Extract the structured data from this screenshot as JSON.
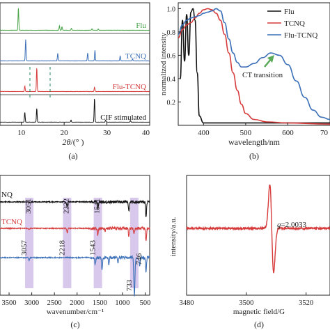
{
  "chart_data": [
    {
      "panel": "(a)",
      "type": "line",
      "xlabel_var": "2θ",
      "xlabel_unit": "/(° )",
      "xlim": [
        5,
        40
      ],
      "xticks": [
        10,
        20,
        30,
        40
      ],
      "series": [
        {
          "name": "Flu",
          "color": "#4aa54a",
          "offset": 3,
          "peaks": [
            [
              9.3,
              0.9
            ],
            [
              18.9,
              0.18
            ],
            [
              19.5,
              0.14
            ],
            [
              21.7,
              0.08
            ],
            [
              26.5,
              0.06
            ],
            [
              28.0,
              0.05
            ]
          ]
        },
        {
          "name": "TCNQ",
          "color": "#3a6fb8",
          "offset": 2,
          "peaks": [
            [
              11.0,
              0.85
            ],
            [
              18.5,
              0.3
            ],
            [
              25.5,
              0.32
            ],
            [
              27.2,
              0.42
            ],
            [
              33.1,
              0.2
            ],
            [
              36.0,
              0.08
            ]
          ]
        },
        {
          "name": "Flu-TCNQ",
          "color": "#d63a3a",
          "offset": 1,
          "peaks": [
            [
              10.8,
              0.22
            ],
            [
              13.6,
              0.95
            ],
            [
              27.1,
              0.18
            ]
          ]
        },
        {
          "name": "CIF stimulated",
          "color": "#111111",
          "offset": 0,
          "peaks": [
            [
              10.8,
              0.4
            ],
            [
              13.6,
              0.55
            ],
            [
              21.6,
              0.08
            ],
            [
              27.1,
              0.95
            ],
            [
              29.7,
              0.08
            ],
            [
              35.5,
              0.06
            ]
          ]
        }
      ],
      "caption": "(a)"
    },
    {
      "panel": "(b)",
      "type": "line",
      "xlabel": "wavelength/nm",
      "ylabel": "normalized intensity",
      "xlim": [
        340,
        700
      ],
      "ylim": [
        0,
        1.05
      ],
      "xticks": [
        400,
        500,
        600
      ],
      "xtick_last_partial": "70",
      "yticks": [
        0.2,
        0.4,
        0.6,
        0.8,
        1.0
      ],
      "ytick_labels": [
        "0.2",
        "0.4",
        "0.6",
        "0.8",
        "1.0"
      ],
      "legend_position": "top-right",
      "series": [
        {
          "name": "Flu",
          "color": "#111111",
          "x": [
            345,
            350,
            355,
            360,
            365,
            370,
            375,
            380,
            385,
            390,
            400,
            420,
            450,
            700
          ],
          "y": [
            0.4,
            0.9,
            0.55,
            0.95,
            0.6,
            0.97,
            1.0,
            0.9,
            0.45,
            0.08,
            0.02,
            0.02,
            0.02,
            0.02
          ]
        },
        {
          "name": "TCNQ",
          "color": "#d63a3a",
          "x": [
            340,
            350,
            360,
            370,
            380,
            390,
            400,
            410,
            420,
            430,
            440,
            450,
            460,
            470,
            480,
            490,
            500,
            520,
            550,
            600,
            700
          ],
          "y": [
            0.75,
            0.82,
            0.86,
            0.88,
            0.92,
            0.96,
            0.99,
            1.0,
            0.99,
            0.96,
            0.9,
            0.78,
            0.62,
            0.45,
            0.3,
            0.18,
            0.1,
            0.05,
            0.03,
            0.02,
            0.01
          ]
        },
        {
          "name": "Flu-TCNQ",
          "color": "#3a6fb8",
          "x": [
            340,
            350,
            360,
            370,
            380,
            390,
            400,
            410,
            420,
            430,
            440,
            450,
            460,
            470,
            480,
            490,
            500,
            520,
            540,
            560,
            580,
            600,
            620,
            640,
            660,
            680,
            700
          ],
          "y": [
            0.78,
            0.86,
            0.9,
            0.92,
            0.93,
            0.94,
            0.96,
            0.97,
            0.98,
            1.0,
            0.98,
            0.88,
            0.74,
            0.62,
            0.54,
            0.5,
            0.5,
            0.53,
            0.58,
            0.62,
            0.6,
            0.52,
            0.38,
            0.24,
            0.13,
            0.07,
            0.05
          ]
        }
      ],
      "annotation": {
        "text": "CT transition",
        "x": 560,
        "y": 0.6
      },
      "caption": "(b)"
    },
    {
      "panel": "(c)",
      "type": "line",
      "xlabel": "wavenumber/cm⁻¹",
      "xlim": [
        3700,
        400
      ],
      "xticks": [
        3500,
        3000,
        2500,
        2000,
        1500,
        1000,
        500
      ],
      "tick_labels": [
        "3500",
        "3000",
        "2500",
        "2000",
        "1500",
        "1000",
        "500"
      ],
      "series": [
        {
          "name": "TCNQ",
          "display_name": "NQ",
          "color": "#111111",
          "offset": 2,
          "bands": [
            [
              3051,
              0.03
            ],
            [
              2222,
              0.25
            ],
            [
              1541,
              0.35
            ],
            [
              860,
              0.5
            ],
            [
              480,
              0.8
            ]
          ]
        },
        {
          "name": "Flu-TCNQ",
          "display_name": "TCNQ",
          "color": "#d63a3a",
          "offset": 1,
          "bands": [
            [
              3057,
              0.05
            ],
            [
              2218,
              0.2
            ],
            [
              1543,
              0.3
            ],
            [
              1380,
              0.1
            ],
            [
              860,
              0.35
            ],
            [
              746,
              0.25
            ],
            [
              480,
              0.6
            ]
          ]
        },
        {
          "name": "Flu",
          "color": "#3a6fb8",
          "offset": 0,
          "bands": [
            [
              3057,
              0.08
            ],
            [
              1600,
              0.2
            ],
            [
              1450,
              0.35
            ],
            [
              1300,
              0.2
            ],
            [
              1100,
              0.15
            ],
            [
              746,
              0.5
            ],
            [
              733,
              0.9
            ],
            [
              620,
              0.25
            ],
            [
              480,
              0.45
            ]
          ]
        }
      ],
      "labels": [
        "3051",
        "3057",
        "2222",
        "2218",
        "1541",
        "1543",
        "746",
        "733"
      ],
      "caption": "(c)"
    },
    {
      "panel": "(d)",
      "type": "line",
      "xlabel": "magnetic field/G",
      "ylabel": "intensity/a.u.",
      "xlim": [
        3480,
        3528
      ],
      "xticks": [
        3480,
        3500,
        3520
      ],
      "color": "#d63a3a",
      "signal_center": 3508.5,
      "annotation": "g=2.0033",
      "annotation_var": "g",
      "annotation_value": "=2.0033",
      "caption": "(d)"
    }
  ]
}
